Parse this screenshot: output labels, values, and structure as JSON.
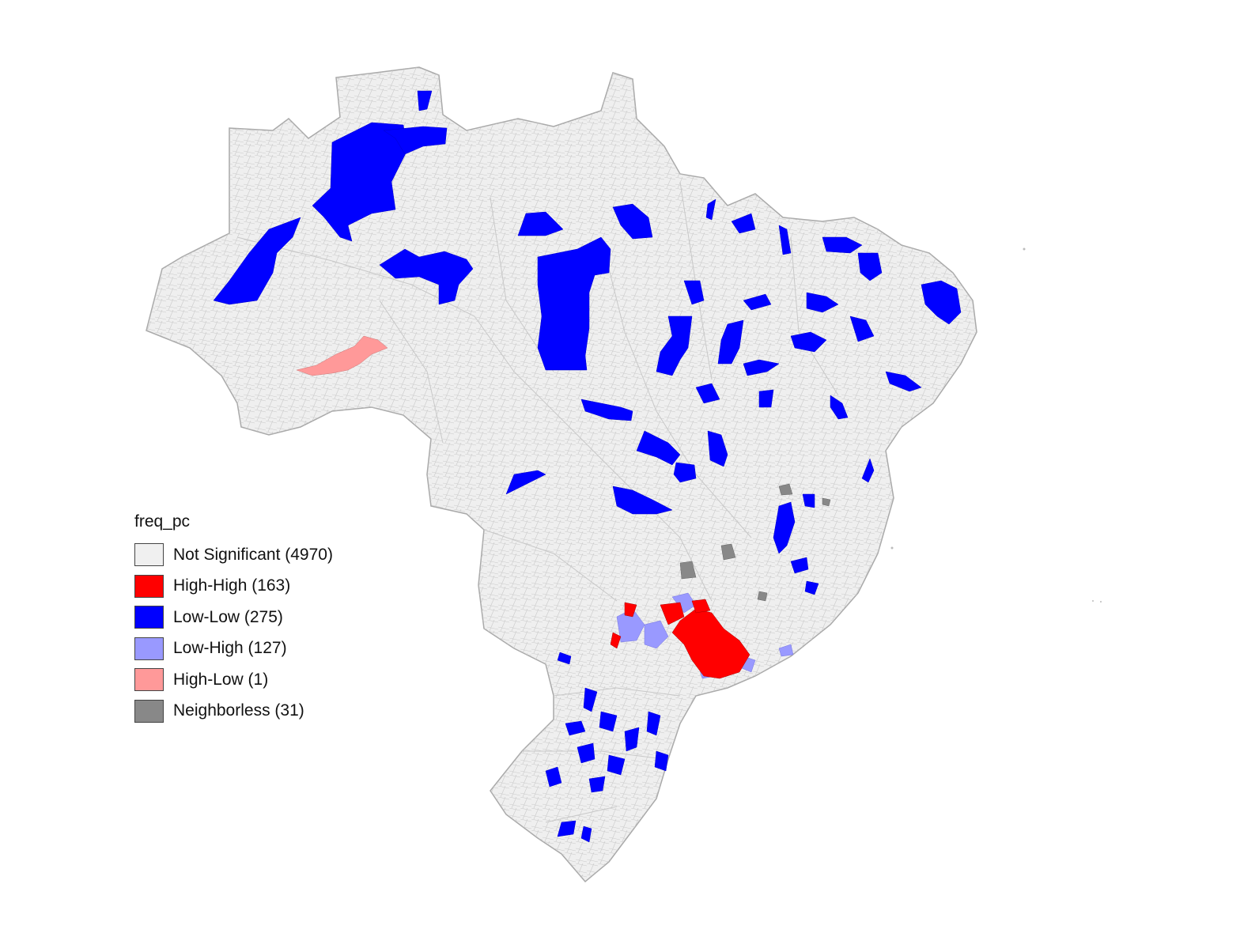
{
  "legend": {
    "title": "freq_pc",
    "items": [
      {
        "label": "Not Significant (4970)",
        "color": "#f0f0f0",
        "category": "not-significant",
        "count": 4970
      },
      {
        "label": "High-High (163)",
        "color": "#ff0000",
        "category": "high-high",
        "count": 163
      },
      {
        "label": "Low-Low (275)",
        "color": "#0000ff",
        "category": "low-low",
        "count": 275
      },
      {
        "label": "Low-High (127)",
        "color": "#9999ff",
        "category": "low-high",
        "count": 127
      },
      {
        "label": "High-Low (1)",
        "color": "#ff9999",
        "category": "high-low",
        "count": 1
      },
      {
        "label": "Neighborless (31)",
        "color": "#888888",
        "category": "neighborless",
        "count": 31
      }
    ]
  },
  "map": {
    "region": "Brazil municipalities",
    "border_color": "#b5b5b5",
    "background": "#ffffff"
  }
}
